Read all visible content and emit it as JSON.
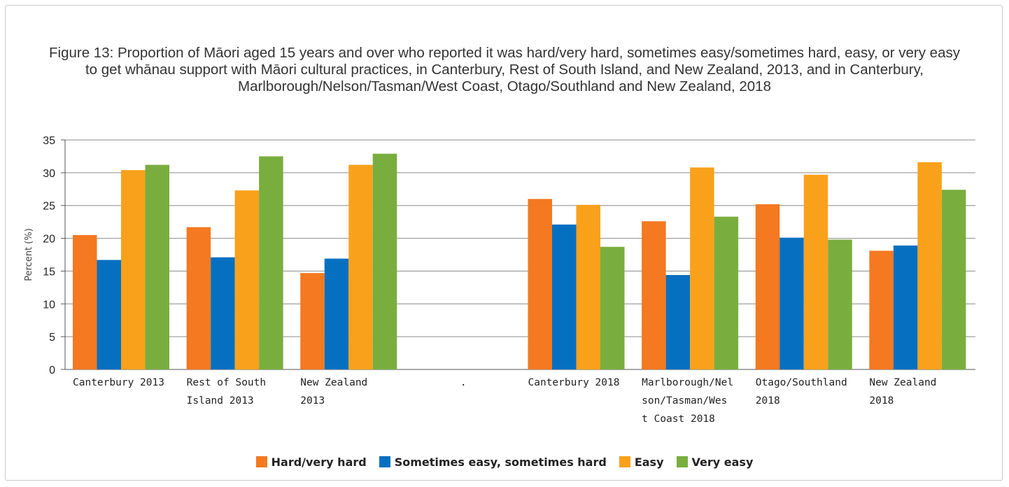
{
  "chart_data": {
    "type": "bar",
    "title": "Figure 13: Proportion of Māori aged 15 years and over who reported it was hard/very hard, sometimes easy/sometimes hard, easy, or very easy to get whānau support with Māori cultural practices, in Canterbury, Rest of South Island, and New Zealand, 2013, and in Canterbury, Marlborough/Nelson/Tasman/West Coast, Otago/Southland and New Zealand, 2018",
    "ylabel": "Percent (%)",
    "xlabel": "",
    "ylim": [
      0,
      35
    ],
    "yticks": [
      0,
      5,
      10,
      15,
      20,
      25,
      30,
      35
    ],
    "grid": true,
    "legend_position": "bottom",
    "categories": [
      [
        "Canterbury 2013"
      ],
      [
        "Rest of South",
        "Island 2013"
      ],
      [
        "New Zealand",
        "2013"
      ],
      [
        "."
      ],
      [
        "Canterbury 2018"
      ],
      [
        "Marlborough/Nel",
        "son/Tasman/Wes",
        "t Coast 2018"
      ],
      [
        "Otago/Southland",
        "2018"
      ],
      [
        "New Zealand",
        "2018"
      ]
    ],
    "series": [
      {
        "name": "Hard/very hard",
        "color": "#f47920",
        "values": [
          20.5,
          21.7,
          14.7,
          null,
          26.0,
          22.6,
          25.2,
          18.1
        ]
      },
      {
        "name": "Sometimes easy, sometimes hard",
        "color": "#0670c0",
        "values": [
          16.7,
          17.1,
          16.9,
          null,
          22.1,
          14.4,
          20.1,
          18.9
        ]
      },
      {
        "name": "Easy",
        "color": "#f9a11b",
        "values": [
          30.4,
          27.3,
          31.2,
          null,
          25.1,
          30.8,
          29.7,
          31.6
        ]
      },
      {
        "name": "Very easy",
        "color": "#79ae3f",
        "values": [
          31.2,
          32.5,
          32.9,
          null,
          18.7,
          23.3,
          19.8,
          27.4
        ]
      }
    ]
  }
}
